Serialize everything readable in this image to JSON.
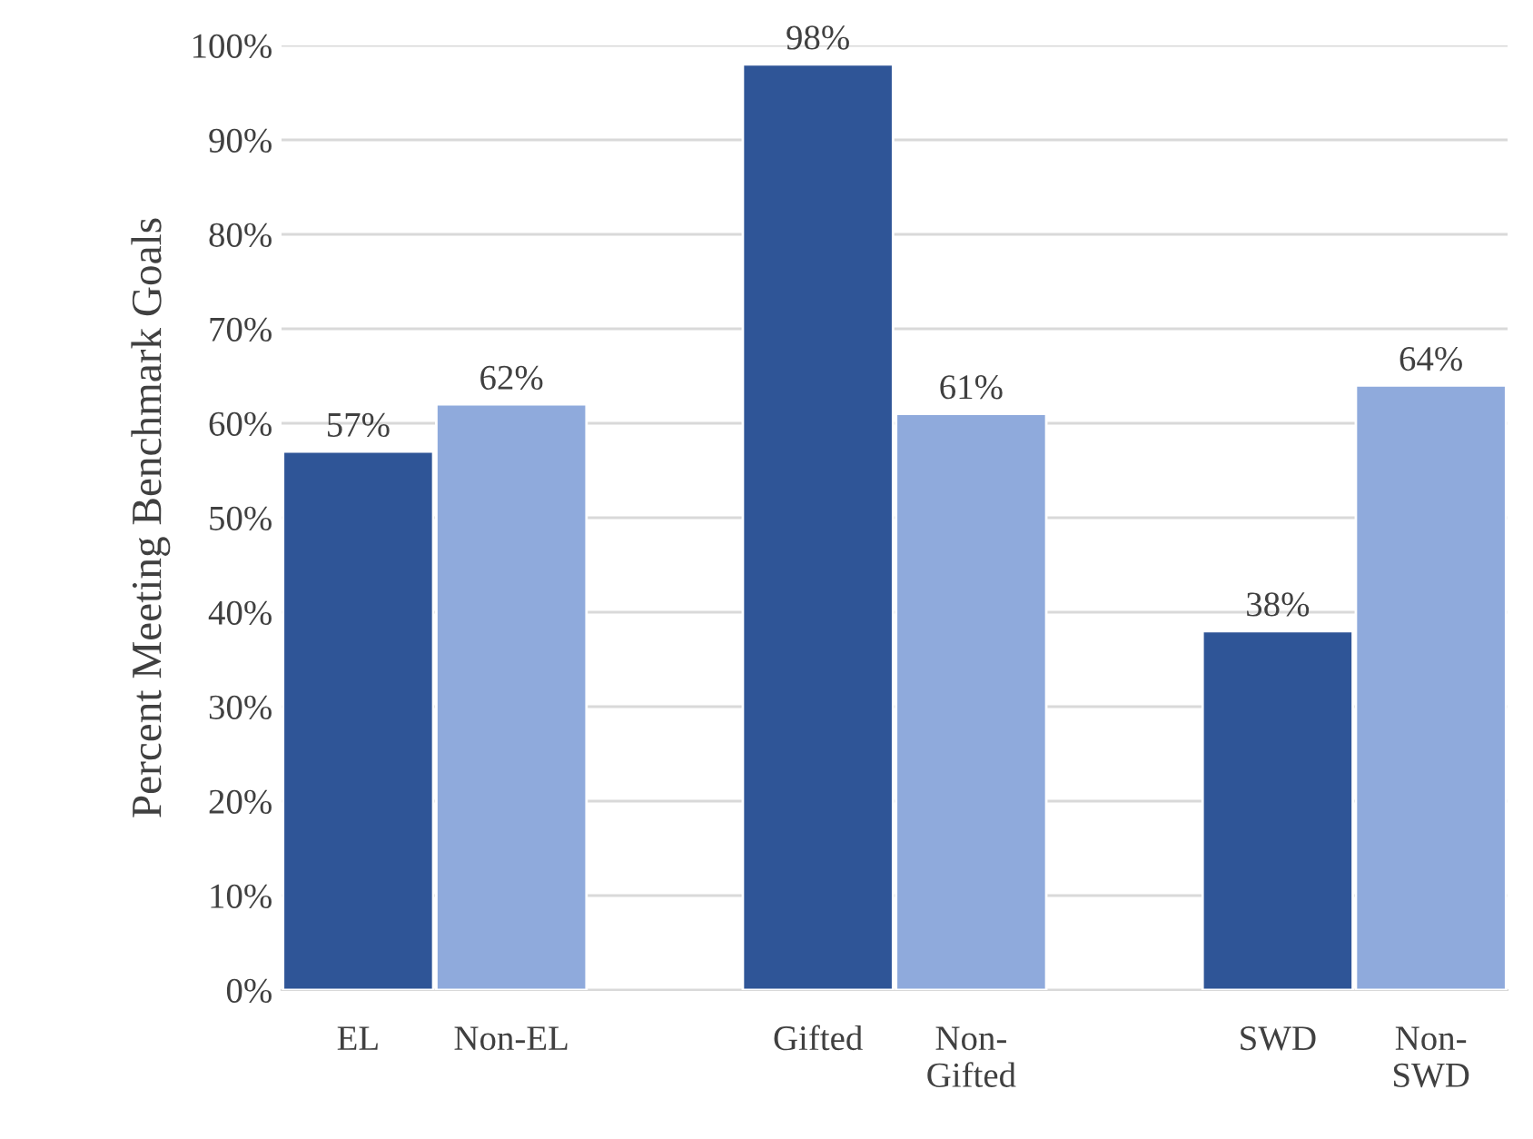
{
  "chart_data": {
    "type": "bar",
    "ylabel": "Percent Meeting Benchmark Goals",
    "categories": [
      "EL",
      "Non-EL",
      null,
      "Gifted",
      "Non-\nGifted",
      null,
      "SWD",
      "Non-\nSWD"
    ],
    "values": [
      57,
      62,
      null,
      98,
      61,
      null,
      38,
      64
    ],
    "colors": [
      "#2f5597",
      "#8faadc",
      "#2f5597",
      "#2f5597",
      "#8faadc",
      "#2f5597",
      "#2f5597",
      "#8faadc"
    ],
    "value_labels": [
      "57%",
      "62%",
      null,
      "98%",
      "61%",
      null,
      "38%",
      "64%"
    ],
    "ylim": [
      0,
      100
    ],
    "yticks": [
      {
        "value": 0,
        "label": "0%"
      },
      {
        "value": 10,
        "label": "10%"
      },
      {
        "value": 20,
        "label": "20%"
      },
      {
        "value": 30,
        "label": "30%"
      },
      {
        "value": 40,
        "label": "40%"
      },
      {
        "value": 50,
        "label": "50%"
      },
      {
        "value": 60,
        "label": "60%"
      },
      {
        "value": 70,
        "label": "70%"
      },
      {
        "value": 80,
        "label": "80%"
      },
      {
        "value": 90,
        "label": "90%"
      },
      {
        "value": 100,
        "label": "100%"
      }
    ],
    "grid": "y"
  }
}
